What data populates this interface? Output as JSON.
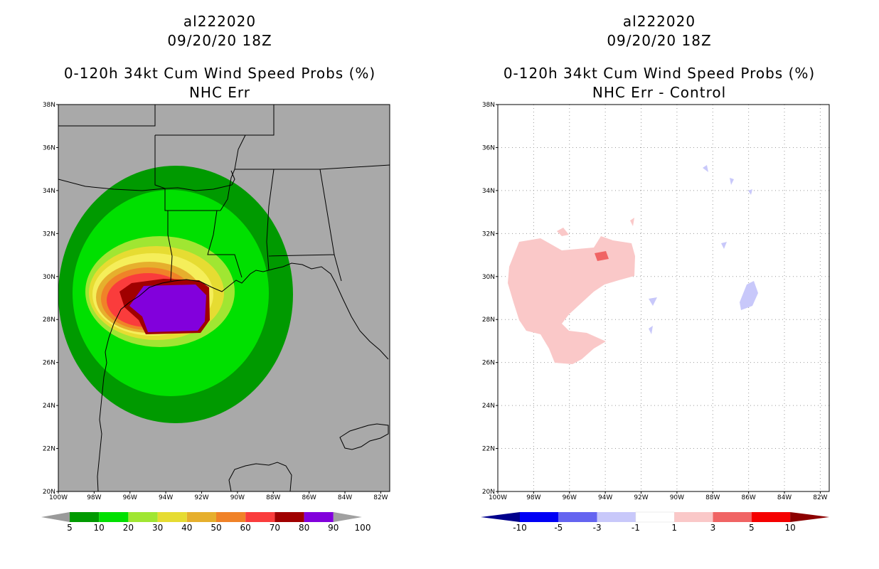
{
  "left_panel": {
    "storm_id": "al222020",
    "datetime": "09/20/20 18Z",
    "product": "0-120h 34kt Cum Wind Speed Probs (%)",
    "subtitle": "NHC Err",
    "colorbar": {
      "labels": [
        "5",
        "10",
        "20",
        "30",
        "40",
        "50",
        "60",
        "70",
        "80",
        "90",
        "100"
      ],
      "colors": [
        "#9a9a9a",
        "#009a00",
        "#00e000",
        "#a0e632",
        "#e6dc32",
        "#e6af2d",
        "#f08228",
        "#fa3c3c",
        "#a00000",
        "#8200dc",
        "#a0a0a0"
      ]
    }
  },
  "right_panel": {
    "storm_id": "al222020",
    "datetime": "09/20/20 18Z",
    "product": "0-120h 34kt Cum Wind Speed Probs (%)",
    "subtitle": "NHC Err - Control",
    "colorbar": {
      "labels": [
        "-10",
        "-5",
        "-3",
        "-1",
        "1",
        "3",
        "5",
        "10"
      ],
      "colors": [
        "#00008c",
        "#0000f5",
        "#6464f0",
        "#c8c8fa",
        "#ffffff",
        "#fac8c8",
        "#f06464",
        "#f50000",
        "#8c0000"
      ]
    }
  },
  "axes": {
    "lat_labels": [
      "38N",
      "36N",
      "34N",
      "32N",
      "30N",
      "28N",
      "26N",
      "24N",
      "22N",
      "20N"
    ],
    "lon_labels": [
      "100W",
      "98W",
      "96W",
      "94W",
      "92W",
      "90W",
      "88W",
      "86W",
      "84W",
      "82W"
    ],
    "lat_range": [
      20,
      38
    ],
    "lon_range": [
      -100,
      -81.5
    ]
  },
  "colors": {
    "land_gray": "#a9a9a9",
    "border": "#000000",
    "grid": "#888888"
  }
}
